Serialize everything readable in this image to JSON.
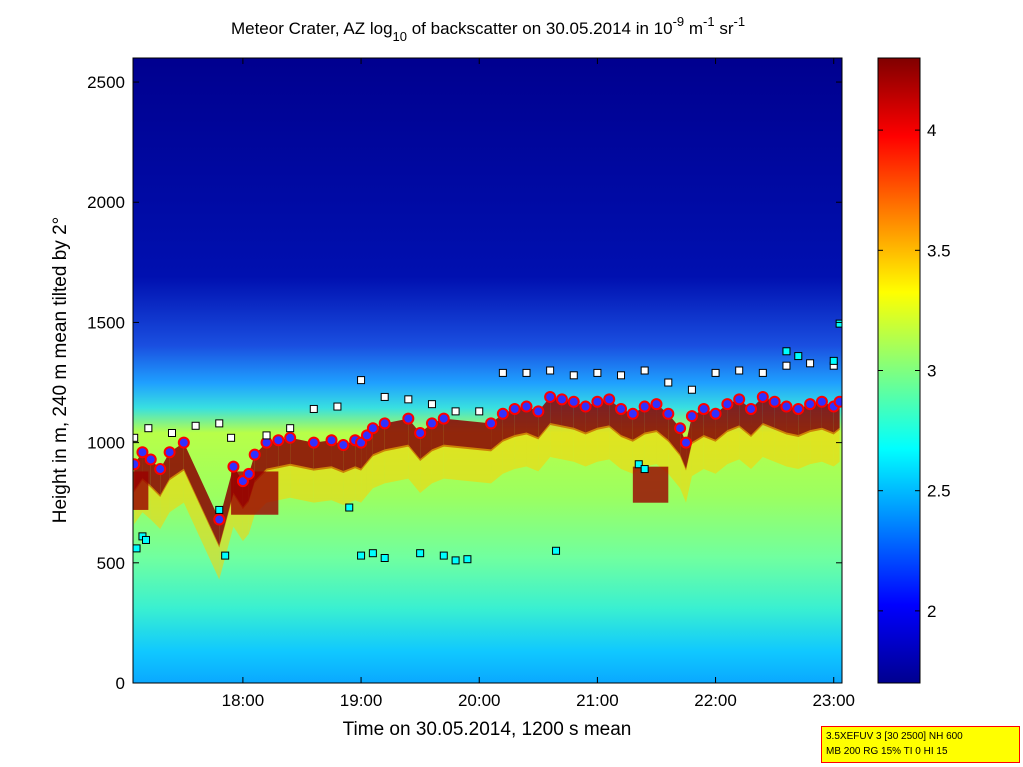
{
  "chart_data": {
    "type": "heatmap",
    "title": {
      "main": "Meteor Crater, AZ log",
      "log_base": "10",
      "mid": " of backscatter on 30.05.2014 in 10",
      "exp1": "-9",
      "unit1": " m",
      "exp2": "-1",
      "unit2": " sr",
      "exp3": "-1"
    },
    "xlabel": "Time on 30.05.2014, 1200 s mean",
    "ylabel": "Height in m, 240 m mean tilted by 2°",
    "xlim_hours": [
      17.07,
      23.07
    ],
    "ylim": [
      0,
      2600
    ],
    "x_ticks": [
      {
        "value": 18,
        "label": "18:00"
      },
      {
        "value": 19,
        "label": "19:00"
      },
      {
        "value": 20,
        "label": "20:00"
      },
      {
        "value": 21,
        "label": "21:00"
      },
      {
        "value": 22,
        "label": "22:00"
      },
      {
        "value": 23,
        "label": "23:00"
      }
    ],
    "y_ticks": [
      {
        "value": 0,
        "label": "0"
      },
      {
        "value": 500,
        "label": "500"
      },
      {
        "value": 1000,
        "label": "1000"
      },
      {
        "value": 1500,
        "label": "1500"
      },
      {
        "value": 2000,
        "label": "2000"
      },
      {
        "value": 2500,
        "label": "2500"
      }
    ],
    "colorbar": {
      "range": [
        1.7,
        4.3
      ],
      "colormap": "jet",
      "ticks": [
        {
          "value": 2,
          "label": "2"
        },
        {
          "value": 2.5,
          "label": "2.5"
        },
        {
          "value": 3,
          "label": "3"
        },
        {
          "value": 3.5,
          "label": "3.5"
        },
        {
          "value": 4,
          "label": "4"
        }
      ]
    },
    "series": [
      {
        "name": "red-dot layer (boundary layer height)",
        "marker": "circle",
        "color": "#ff0000",
        "points": [
          [
            17.08,
            910
          ],
          [
            17.15,
            960
          ],
          [
            17.22,
            930
          ],
          [
            17.3,
            890
          ],
          [
            17.38,
            960
          ],
          [
            17.5,
            1000
          ],
          [
            17.8,
            680
          ],
          [
            17.92,
            900
          ],
          [
            18.0,
            840
          ],
          [
            18.05,
            870
          ],
          [
            18.1,
            950
          ],
          [
            18.2,
            1000
          ],
          [
            18.3,
            1010
          ],
          [
            18.4,
            1020
          ],
          [
            18.6,
            1000
          ],
          [
            18.75,
            1010
          ],
          [
            18.85,
            990
          ],
          [
            18.95,
            1010
          ],
          [
            19.0,
            1000
          ],
          [
            19.05,
            1030
          ],
          [
            19.1,
            1060
          ],
          [
            19.2,
            1080
          ],
          [
            19.4,
            1100
          ],
          [
            19.5,
            1040
          ],
          [
            19.6,
            1080
          ],
          [
            19.7,
            1100
          ],
          [
            20.1,
            1080
          ],
          [
            20.2,
            1120
          ],
          [
            20.3,
            1140
          ],
          [
            20.4,
            1150
          ],
          [
            20.5,
            1130
          ],
          [
            20.6,
            1190
          ],
          [
            20.7,
            1180
          ],
          [
            20.8,
            1170
          ],
          [
            20.9,
            1150
          ],
          [
            21.0,
            1170
          ],
          [
            21.1,
            1180
          ],
          [
            21.2,
            1140
          ],
          [
            21.3,
            1120
          ],
          [
            21.4,
            1150
          ],
          [
            21.5,
            1160
          ],
          [
            21.6,
            1120
          ],
          [
            21.7,
            1060
          ],
          [
            21.75,
            1000
          ],
          [
            21.8,
            1110
          ],
          [
            21.9,
            1140
          ],
          [
            22.0,
            1120
          ],
          [
            22.1,
            1160
          ],
          [
            22.2,
            1180
          ],
          [
            22.3,
            1140
          ],
          [
            22.4,
            1190
          ],
          [
            22.5,
            1170
          ],
          [
            22.6,
            1150
          ],
          [
            22.7,
            1140
          ],
          [
            22.8,
            1160
          ],
          [
            22.9,
            1170
          ],
          [
            23.0,
            1150
          ],
          [
            23.05,
            1170
          ]
        ]
      },
      {
        "name": "black-square layer (cloud/aerosol top)",
        "marker": "square",
        "color": "#ffffff",
        "points": [
          [
            17.08,
            1020
          ],
          [
            17.2,
            1060
          ],
          [
            17.4,
            1040
          ],
          [
            17.6,
            1070
          ],
          [
            17.8,
            1080
          ],
          [
            17.9,
            1020
          ],
          [
            18.2,
            1030
          ],
          [
            18.4,
            1060
          ],
          [
            18.6,
            1140
          ],
          [
            18.8,
            1150
          ],
          [
            19.0,
            1260
          ],
          [
            19.2,
            1190
          ],
          [
            19.4,
            1180
          ],
          [
            19.6,
            1160
          ],
          [
            19.8,
            1130
          ],
          [
            20.0,
            1130
          ],
          [
            20.2,
            1290
          ],
          [
            20.4,
            1290
          ],
          [
            20.6,
            1300
          ],
          [
            20.8,
            1280
          ],
          [
            21.0,
            1290
          ],
          [
            21.2,
            1280
          ],
          [
            21.4,
            1300
          ],
          [
            21.6,
            1250
          ],
          [
            21.8,
            1220
          ],
          [
            22.0,
            1290
          ],
          [
            22.2,
            1300
          ],
          [
            22.4,
            1290
          ],
          [
            22.6,
            1320
          ],
          [
            22.8,
            1330
          ],
          [
            23.0,
            1320
          ]
        ]
      },
      {
        "name": "cyan-square layer (secondary detections)",
        "marker": "square",
        "color": "#00ffff",
        "points": [
          [
            17.1,
            560
          ],
          [
            17.15,
            610
          ],
          [
            17.18,
            595
          ],
          [
            17.8,
            720
          ],
          [
            17.85,
            530
          ],
          [
            18.9,
            730
          ],
          [
            19.0,
            530
          ],
          [
            19.1,
            540
          ],
          [
            19.2,
            520
          ],
          [
            19.5,
            540
          ],
          [
            19.7,
            530
          ],
          [
            19.8,
            510
          ],
          [
            19.9,
            515
          ],
          [
            20.65,
            550
          ],
          [
            21.35,
            910
          ],
          [
            21.4,
            890
          ],
          [
            22.6,
            1380
          ],
          [
            22.7,
            1360
          ],
          [
            23.0,
            1340
          ],
          [
            23.05,
            1495
          ]
        ]
      }
    ]
  },
  "info_box": {
    "line1": "3.5XEFUV 3 [30 2500] NH 600",
    "line2": "MB 200 RG 15% TI 0 HI 15"
  }
}
